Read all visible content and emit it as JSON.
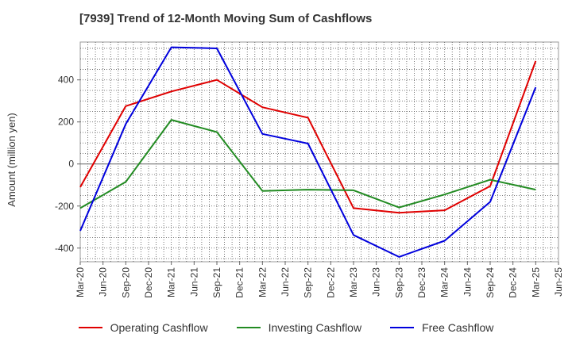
{
  "title": "[7939]  Trend of 12-Month Moving Sum of Cashflows",
  "chart_data": {
    "type": "line",
    "title": "[7939]  Trend of 12-Month Moving Sum of Cashflows",
    "xlabel": "",
    "ylabel": "Amount (million yen)",
    "x_tick_labels": [
      "Mar-20",
      "Jun-20",
      "Sep-20",
      "Dec-20",
      "Mar-21",
      "Jun-21",
      "Sep-21",
      "Dec-21",
      "Mar-22",
      "Jun-22",
      "Sep-22",
      "Dec-22",
      "Mar-23",
      "Jun-23",
      "Sep-23",
      "Dec-23",
      "Mar-24",
      "Jun-24",
      "Sep-24",
      "Dec-24",
      "Mar-25",
      "Jun-25"
    ],
    "y_ticks": [
      -400,
      -200,
      0,
      200,
      400
    ],
    "ylim": [
      -465,
      580
    ],
    "grid": true,
    "legend_position": "bottom",
    "series": [
      {
        "name": "Operating Cashflow",
        "color": "#e00000",
        "x": [
          "Mar-20",
          "Sep-20",
          "Mar-21",
          "Sep-21",
          "Mar-22",
          "Sep-22",
          "Mar-23",
          "Sep-23",
          "Mar-24",
          "Sep-24",
          "Mar-25"
        ],
        "values": [
          -110,
          275,
          345,
          400,
          270,
          220,
          -210,
          -232,
          -220,
          -105,
          490
        ]
      },
      {
        "name": "Investing Cashflow",
        "color": "#228b22",
        "x": [
          "Mar-20",
          "Sep-20",
          "Mar-21",
          "Sep-21",
          "Mar-22",
          "Sep-22",
          "Mar-23",
          "Sep-23",
          "Mar-24",
          "Sep-24",
          "Mar-25"
        ],
        "values": [
          -210,
          -85,
          210,
          152,
          -128,
          -122,
          -125,
          -207,
          -145,
          -75,
          -122
        ]
      },
      {
        "name": "Free Cashflow",
        "color": "#0000dd",
        "x": [
          "Mar-20",
          "Sep-20",
          "Mar-21",
          "Sep-21",
          "Mar-22",
          "Sep-22",
          "Mar-23",
          "Sep-23",
          "Mar-24",
          "Sep-24",
          "Mar-25"
        ],
        "values": [
          -318,
          190,
          555,
          550,
          143,
          97,
          -338,
          -442,
          -365,
          -180,
          365
        ]
      }
    ]
  }
}
